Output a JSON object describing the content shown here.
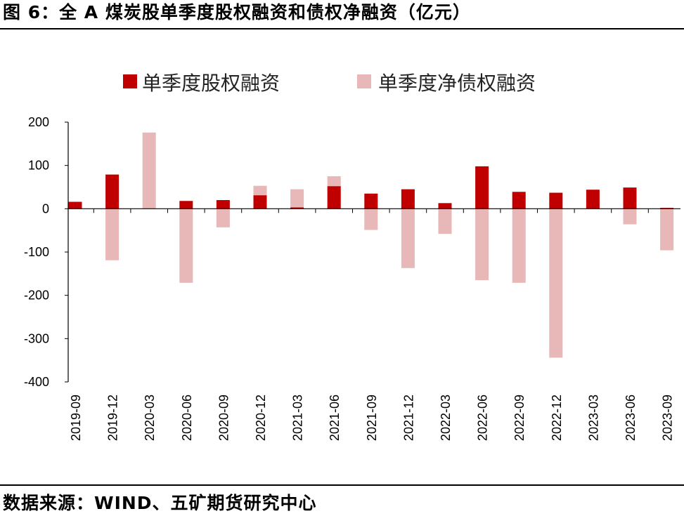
{
  "title": "图 6：全 A 煤炭股单季度股权融资和债权净融资（亿元）",
  "source": "数据来源：WIND、五矿期货研究中心",
  "chart_data": {
    "type": "bar",
    "title": "",
    "xlabel": "",
    "ylabel": "",
    "ylim": [
      -400,
      200
    ],
    "yticks": [
      200,
      100,
      0,
      -100,
      -200,
      -300,
      -400
    ],
    "grid": false,
    "legend_position": "top",
    "categories": [
      "2019-09",
      "2019-12",
      "2020-03",
      "2020-06",
      "2020-09",
      "2020-12",
      "2021-03",
      "2021-06",
      "2021-09",
      "2021-12",
      "2022-03",
      "2022-06",
      "2022-09",
      "2022-12",
      "2023-03",
      "2023-06",
      "2023-09"
    ],
    "series": [
      {
        "name": "单季度股权融资",
        "color": "#c00000",
        "values": [
          16,
          79,
          0,
          18,
          20,
          31,
          3,
          52,
          35,
          45,
          13,
          98,
          39,
          37,
          44,
          49,
          2
        ]
      },
      {
        "name": "单季度净债权融资",
        "color": "#e8b7b7",
        "values": [
          12,
          -119,
          176,
          -171,
          -43,
          53,
          45,
          75,
          -49,
          -137,
          -58,
          -165,
          -171,
          -344,
          41,
          -36,
          -96
        ]
      }
    ]
  }
}
